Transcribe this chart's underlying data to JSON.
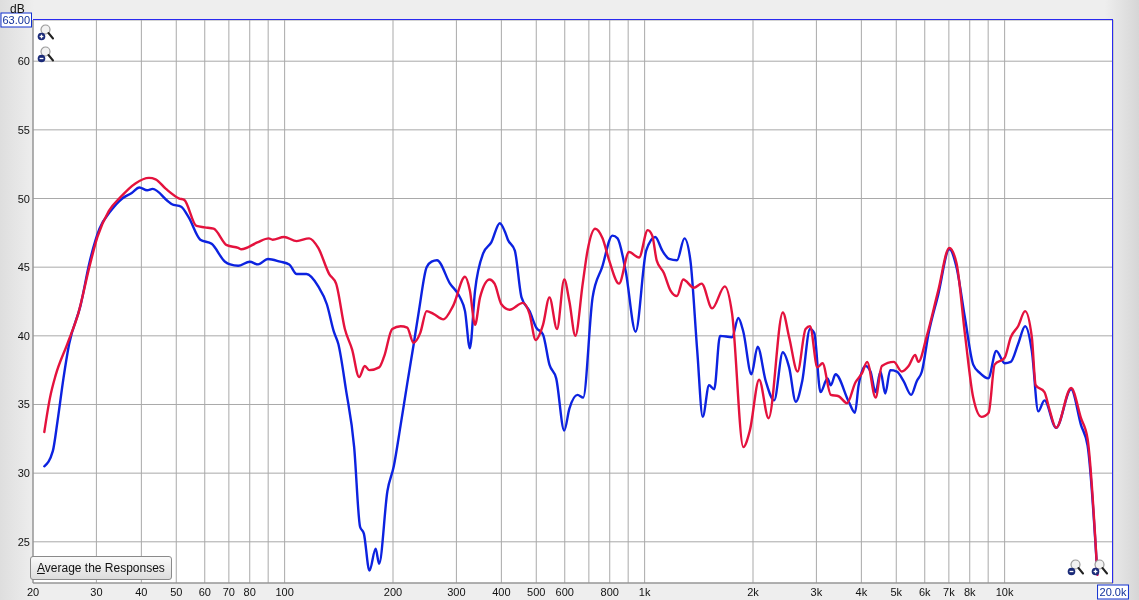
{
  "chart_data": {
    "type": "line",
    "ylabel": "dB",
    "log": "x",
    "grid": true,
    "xlim": [
      20,
      20000
    ],
    "ylim": [
      22,
      63
    ],
    "xticks": [
      20,
      30,
      40,
      50,
      60,
      70,
      80,
      {
        "value": 90,
        "label": null
      },
      100,
      200,
      300,
      400,
      500,
      600,
      {
        "value": 700,
        "label": null
      },
      800,
      {
        "value": 900,
        "label": null
      },
      {
        "value": 1000,
        "label": "1k"
      },
      {
        "value": 2000,
        "label": "2k"
      },
      {
        "value": 3000,
        "label": "3k"
      },
      {
        "value": 4000,
        "label": "4k"
      },
      {
        "value": 5000,
        "label": "5k"
      },
      {
        "value": 6000,
        "label": "6k"
      },
      {
        "value": 7000,
        "label": "7k"
      },
      {
        "value": 8000,
        "label": "8k"
      },
      {
        "value": 9000,
        "label": null
      },
      {
        "value": 10000,
        "label": "10k"
      },
      {
        "value": 20000,
        "label": "20.0k"
      }
    ],
    "yticks": [
      25,
      30,
      35,
      40,
      45,
      50,
      55,
      60,
      {
        "value": 63,
        "label": "63.00"
      }
    ],
    "annotations": [
      "Average the Responses"
    ],
    "series": [
      {
        "color": "#0c22e0",
        "x": [
          21.5,
          22.7,
          23.4,
          24.3,
          25.2,
          27.1,
          28.8,
          30.6,
          32.9,
          35.4,
          37.6,
          39.5,
          41.5,
          43,
          47.4,
          48.5,
          51.6,
          54.2,
          58.3,
          62.7,
          68.3,
          70.6,
          74.3,
          80,
          84.4,
          89.9,
          97.2,
          103,
          108,
          115,
          124,
          131,
          137,
          141,
          148,
          156,
          162,
          166,
          172,
          179,
          183,
          193,
          201,
          210,
          219,
          228,
          236,
          248,
          256,
          265,
          288,
          307,
          317,
          327,
          338,
          356,
          375,
          396,
          409,
          417,
          436,
          455,
          479,
          500,
          522,
          544,
          568,
          598,
          618,
          651,
          675,
          717,
          762,
          814,
          841,
          886,
          944,
          1010,
          1070,
          1120,
          1170,
          1230,
          1290,
          1340,
          1400,
          1450,
          1510,
          1560,
          1620,
          1750,
          1820,
          1880,
          1980,
          2060,
          2170,
          2290,
          2420,
          2520,
          2630,
          2740,
          2880,
          2960,
          3080,
          3220,
          3290,
          3390,
          3690,
          3840,
          3930,
          4110,
          4240,
          4380,
          4520,
          4660,
          4810,
          5020,
          5240,
          5500,
          5700,
          5890,
          6140,
          6540,
          7020,
          7350,
          7760,
          8180,
          8530,
          9000,
          9480,
          10000,
          10400,
          10900,
          11400,
          11900,
          12400,
          12900,
          13900,
          15300,
          16300,
          17000,
          18100
        ],
        "values": [
          30.5,
          31.6,
          33.8,
          36.9,
          39.4,
          42.2,
          45.5,
          47.8,
          49.1,
          50,
          50.4,
          50.8,
          50.6,
          50.7,
          49.8,
          49.6,
          49.4,
          48.6,
          47,
          46.7,
          45.4,
          45.2,
          45.1,
          45.4,
          45.2,
          45.6,
          45.4,
          45.2,
          44.5,
          44.5,
          43.6,
          42.3,
          40.3,
          39.4,
          36.1,
          31.9,
          26.1,
          25.6,
          22.9,
          24.5,
          23.4,
          28.7,
          30.5,
          33.5,
          36.5,
          39.3,
          41.8,
          45,
          45.4,
          45.5,
          43.8,
          42.8,
          41.8,
          39.1,
          43.3,
          46,
          46.8,
          48.2,
          47.6,
          47,
          46.2,
          42.8,
          41.8,
          40.6,
          40.1,
          37.9,
          36.9,
          33.1,
          34.7,
          35.7,
          35.5,
          42.8,
          45,
          47.3,
          47.1,
          44.7,
          40.3,
          46.2,
          47.2,
          46.2,
          45.6,
          45.5,
          47.1,
          45.5,
          38.9,
          34.1,
          36.4,
          36.1,
          40,
          39.9,
          41.3,
          40.3,
          37.2,
          39.2,
          36.7,
          35.3,
          38.8,
          37.7,
          35.2,
          36.7,
          40.5,
          40.2,
          35.9,
          36.9,
          36.4,
          37.2,
          35.2,
          34.4,
          36.4,
          37.8,
          37.4,
          35.9,
          37.4,
          35.8,
          37.5,
          37.4,
          36.7,
          35.7,
          36.7,
          37.4,
          40.1,
          43,
          46.3,
          45,
          41.3,
          37.9,
          37.3,
          36.9,
          38.9,
          38,
          38.1,
          39.4,
          40.7,
          38.9,
          34.5,
          35.3,
          33.3,
          36.1,
          33.5,
          32,
          22.6
        ]
      },
      {
        "color": "#e4123d",
        "x": [
          21.5,
          22.3,
          23.1,
          24.9,
          26.7,
          28.8,
          30.2,
          32.5,
          35,
          38.5,
          42,
          43.8,
          46.8,
          51,
          52.6,
          56.9,
          60,
          63.5,
          69.1,
          74.3,
          75.8,
          84,
          90.3,
          92.6,
          99.6,
          108,
          117,
          124,
          133,
          139,
          147,
          154,
          161,
          167,
          172,
          183,
          189,
          199,
          210,
          219,
          228,
          238,
          248,
          259,
          276,
          294,
          317,
          327,
          338,
          349,
          371,
          383,
          400,
          422,
          459,
          479,
          498,
          522,
          544,
          571,
          598,
          618,
          642,
          673,
          694,
          729,
          764,
          797,
          849,
          905,
          965,
          1020,
          1050,
          1080,
          1130,
          1180,
          1230,
          1280,
          1370,
          1440,
          1540,
          1670,
          1750,
          1880,
          1960,
          2080,
          2210,
          2420,
          2520,
          2660,
          2800,
          2880,
          3020,
          3120,
          3290,
          3460,
          3650,
          3850,
          4020,
          4150,
          4380,
          4560,
          4920,
          5180,
          5410,
          5640,
          5760,
          6080,
          6540,
          7020,
          7350,
          7760,
          8180,
          8620,
          9030,
          9380,
          10000,
          10400,
          10900,
          11400,
          11900,
          12200,
          12900,
          13300,
          13900,
          15300,
          16300,
          17000,
          18100
        ],
        "values": [
          33,
          35.5,
          37.1,
          39.4,
          41.6,
          45.2,
          47.2,
          49.1,
          50.1,
          51.1,
          51.5,
          51.4,
          50.7,
          50,
          49.9,
          48,
          47.9,
          47.8,
          46.6,
          46.4,
          46.3,
          46.8,
          47.1,
          47,
          47.2,
          46.9,
          47.1,
          46.4,
          44.5,
          43.8,
          40.5,
          39,
          37,
          37.8,
          37.5,
          37.7,
          38.5,
          40.5,
          40.7,
          40.6,
          39.5,
          40.2,
          41.8,
          41.6,
          41.2,
          42.2,
          44.3,
          43.3,
          40.8,
          42.8,
          44.1,
          43.8,
          42.3,
          41.9,
          42.4,
          41.6,
          39.7,
          40.8,
          42.8,
          40.5,
          44.1,
          42.5,
          40,
          43.8,
          46.2,
          47.8,
          47.1,
          45.5,
          43.8,
          46.1,
          45.7,
          47.7,
          47.3,
          45.5,
          44.6,
          43.3,
          42.9,
          44.1,
          43.5,
          43.8,
          42,
          43.6,
          41.6,
          31.9,
          33.1,
          36.8,
          34,
          41.7,
          39.9,
          37.4,
          40.5,
          40.7,
          37.7,
          38,
          35.7,
          35.6,
          35.1,
          36.6,
          37.3,
          38.1,
          35.5,
          37.8,
          38.1,
          37.4,
          37.8,
          38.6,
          38.1,
          40,
          43.3,
          46.4,
          45.3,
          40.1,
          35.5,
          34.1,
          34.4,
          37.9,
          38.4,
          39.9,
          40.7,
          41.8,
          39.9,
          36.4,
          35.9,
          34.7,
          33.3,
          36.2,
          34,
          32.5,
          22.6
        ]
      }
    ]
  }
}
